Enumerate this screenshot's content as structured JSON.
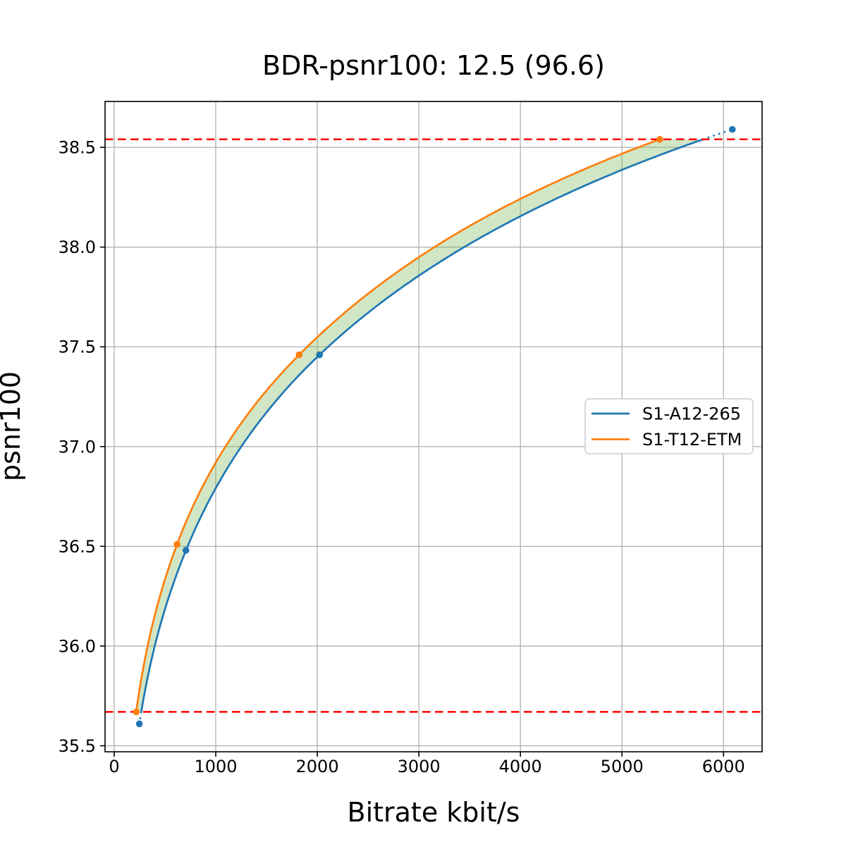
{
  "chart_data": {
    "type": "line",
    "title": "BDR-psnr100: 12.5 (96.6)",
    "xlabel": "Bitrate kbit/s",
    "ylabel": "psnr100",
    "xlim": [
      -90,
      6380
    ],
    "ylim": [
      35.47,
      38.73
    ],
    "xticks": [
      0,
      1000,
      2000,
      3000,
      4000,
      5000,
      6000
    ],
    "yticks": [
      35.5,
      36.0,
      36.5,
      37.0,
      37.5,
      38.0,
      38.5
    ],
    "grid": true,
    "grid_color": "#b0b0b0",
    "legend_position": "center right",
    "interpolation": "pchip-log-x",
    "series": [
      {
        "name": "S1-A12-265",
        "color": "#1f77b4",
        "points": [
          [
            248,
            35.61
          ],
          [
            707,
            36.48
          ],
          [
            2022,
            37.46
          ],
          [
            6087,
            38.59
          ]
        ]
      },
      {
        "name": "S1-T12-ETM",
        "color": "#ff7f0e",
        "points": [
          [
            217,
            35.67
          ],
          [
            619,
            36.51
          ],
          [
            1821,
            37.46
          ],
          [
            5373,
            38.54
          ]
        ]
      }
    ],
    "overlap_hlines": {
      "color": "#ff0000",
      "style": "dashed",
      "y": [
        35.67,
        38.54
      ]
    },
    "fill_between": {
      "series": [
        "S1-T12-ETM",
        "S1-A12-265"
      ],
      "color": "#7ab65a",
      "opacity": 0.35,
      "y_range": [
        35.67,
        38.54
      ]
    }
  }
}
